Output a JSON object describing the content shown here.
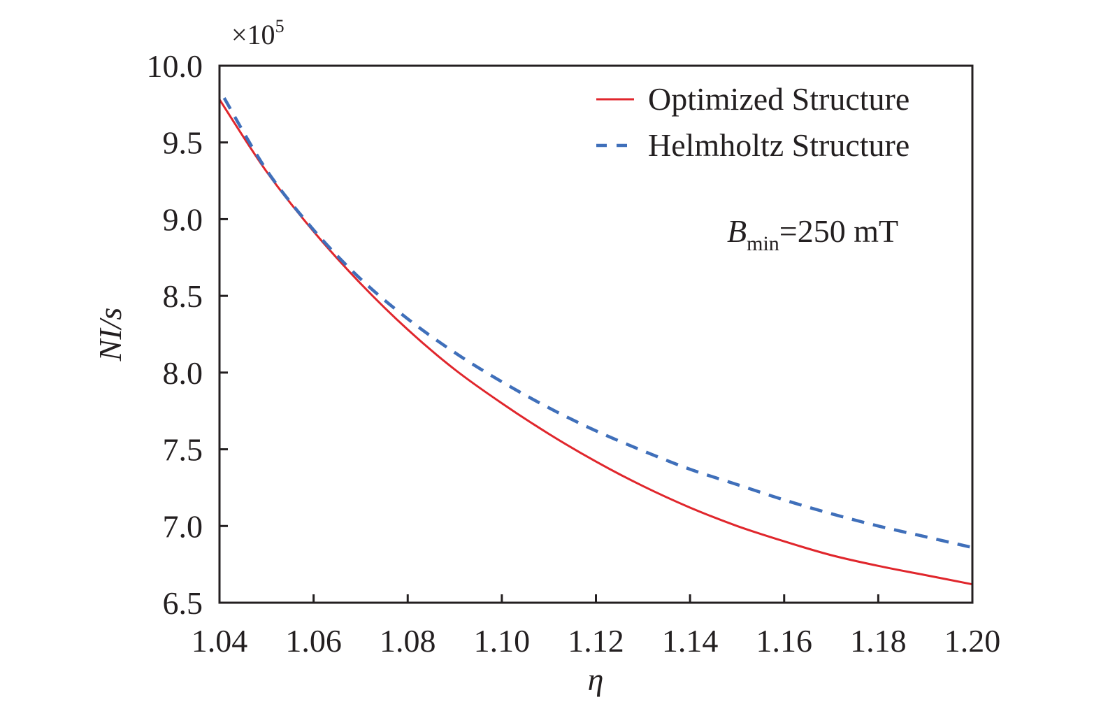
{
  "chart_data": {
    "type": "line",
    "title": "",
    "xlabel": "η",
    "ylabel": "NI/s",
    "y_multiplier": {
      "base": "×10",
      "exponent": "5"
    },
    "xlim": [
      1.04,
      1.2
    ],
    "ylim": [
      6.5,
      10.0
    ],
    "x_ticks": [
      "1.04",
      "1.06",
      "1.08",
      "1.10",
      "1.12",
      "1.14",
      "1.16",
      "1.18",
      "1.20"
    ],
    "y_ticks": [
      "6.5",
      "7.0",
      "7.5",
      "8.0",
      "8.5",
      "9.0",
      "9.5",
      "10.0"
    ],
    "grid": false,
    "legend_position": "top-right",
    "annotation": {
      "main": "B",
      "sub": "min",
      "rest": "=250 mT"
    },
    "series": [
      {
        "name": "Optimized Structure",
        "color": "#e0262c",
        "style": "solid",
        "x": [
          1.04,
          1.05,
          1.06,
          1.07,
          1.08,
          1.09,
          1.1,
          1.11,
          1.12,
          1.13,
          1.14,
          1.15,
          1.16,
          1.17,
          1.18,
          1.19,
          1.2
        ],
        "y": [
          9.78,
          9.31,
          8.92,
          8.58,
          8.28,
          8.02,
          7.8,
          7.6,
          7.42,
          7.26,
          7.12,
          7.0,
          6.9,
          6.81,
          6.74,
          6.68,
          6.62
        ]
      },
      {
        "name": "Helmholtz Structure",
        "color": "#3f6fba",
        "style": "dashed",
        "x": [
          1.041,
          1.05,
          1.06,
          1.07,
          1.08,
          1.09,
          1.1,
          1.11,
          1.12,
          1.13,
          1.14,
          1.15,
          1.16,
          1.17,
          1.18,
          1.19,
          1.2
        ],
        "y": [
          9.79,
          9.32,
          8.93,
          8.61,
          8.35,
          8.13,
          7.94,
          7.77,
          7.62,
          7.49,
          7.37,
          7.27,
          7.17,
          7.08,
          7.0,
          6.93,
          6.86
        ]
      }
    ]
  }
}
